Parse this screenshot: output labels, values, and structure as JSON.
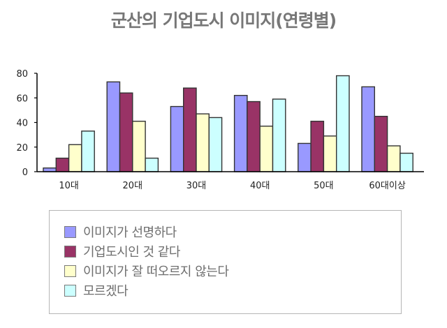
{
  "title": "군산의 기업도시 이미지(연령별)",
  "chart_data": {
    "type": "bar",
    "title": "군산의 기업도시 이미지(연령별)",
    "xlabel": "",
    "ylabel": "",
    "categories": [
      "10대",
      "20대",
      "30대",
      "40대",
      "50대",
      "60대이상"
    ],
    "series": [
      {
        "name": "이미지가 선명하다",
        "color": "#9999ff",
        "values": [
          3,
          73,
          53,
          62,
          23,
          69
        ]
      },
      {
        "name": "기업도시인 것 같다",
        "color": "#993366",
        "values": [
          11,
          64,
          68,
          57,
          41,
          45
        ]
      },
      {
        "name": "이미지가 잘 떠오르지 않는다",
        "color": "#ffffcc",
        "values": [
          22,
          41,
          47,
          37,
          29,
          21
        ]
      },
      {
        "name": "모르겠다",
        "color": "#ccffff",
        "values": [
          33,
          11,
          44,
          59,
          78,
          15
        ]
      }
    ],
    "ylim": [
      0,
      80
    ],
    "yticks": [
      0,
      20,
      40,
      60,
      80
    ],
    "grid": false,
    "legend_position": "bottom"
  },
  "legend": {
    "items": [
      {
        "label": "이미지가 선명하다",
        "color": "#9999ff"
      },
      {
        "label": "기업도시인 것 같다",
        "color": "#993366"
      },
      {
        "label": "이미지가 잘 떠오르지 않는다",
        "color": "#ffffcc"
      },
      {
        "label": "모르겠다",
        "color": "#ccffff"
      }
    ]
  }
}
